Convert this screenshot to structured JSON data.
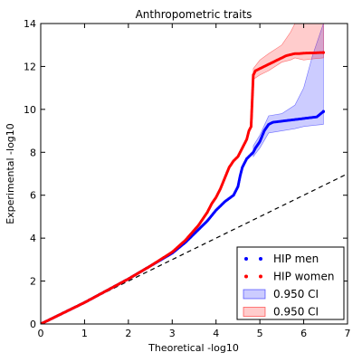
{
  "chart_data": {
    "type": "scatter",
    "title": "Anthropometric traits",
    "xlabel": "Theoretical -log10",
    "ylabel": "Experimental -log10",
    "xlim": [
      0,
      7
    ],
    "ylim": [
      0,
      14
    ],
    "xticks": [
      "0",
      "1",
      "2",
      "3",
      "4",
      "5",
      "6",
      "7"
    ],
    "yticks": [
      "0",
      "2",
      "4",
      "6",
      "8",
      "10",
      "12",
      "14"
    ],
    "grid": false,
    "legend_position": "bottom-right",
    "reference_line": {
      "style": "dashed",
      "color": "#000000",
      "x": [
        0,
        7
      ],
      "y": [
        0,
        7
      ]
    },
    "series": [
      {
        "name": "HIP men",
        "color": "#0000ff",
        "x": [
          0,
          0.5,
          1.0,
          1.5,
          2.0,
          2.5,
          3.0,
          3.3,
          3.6,
          3.8,
          4.0,
          4.2,
          4.4,
          4.5,
          4.55,
          4.6,
          4.7,
          4.8,
          4.85,
          4.9,
          5.0,
          5.1,
          5.2,
          5.3,
          5.5,
          5.7,
          5.9,
          6.1,
          6.3,
          6.45
        ],
        "y": [
          0,
          0.5,
          1.0,
          1.55,
          2.1,
          2.7,
          3.3,
          3.8,
          4.4,
          4.8,
          5.3,
          5.7,
          6.0,
          6.4,
          6.9,
          7.3,
          7.7,
          7.9,
          8.0,
          8.2,
          8.5,
          9.0,
          9.3,
          9.4,
          9.45,
          9.5,
          9.55,
          9.6,
          9.65,
          9.9
        ]
      },
      {
        "name": "HIP women",
        "color": "#ff0000",
        "x": [
          0,
          0.5,
          1.0,
          1.5,
          2.0,
          2.5,
          3.0,
          3.3,
          3.6,
          3.8,
          3.9,
          4.0,
          4.1,
          4.2,
          4.3,
          4.4,
          4.5,
          4.6,
          4.7,
          4.75,
          4.8,
          4.85,
          4.9,
          5.0,
          5.1,
          5.2,
          5.3,
          5.4,
          5.5,
          5.6,
          5.7,
          5.8,
          5.9,
          6.0,
          6.2,
          6.45
        ],
        "y": [
          0,
          0.5,
          1.0,
          1.55,
          2.1,
          2.7,
          3.35,
          3.9,
          4.6,
          5.2,
          5.6,
          5.9,
          6.3,
          6.8,
          7.3,
          7.6,
          7.8,
          8.2,
          8.6,
          9.0,
          9.2,
          11.6,
          11.8,
          11.9,
          12.0,
          12.1,
          12.2,
          12.3,
          12.4,
          12.5,
          12.55,
          12.6,
          12.6,
          12.62,
          12.63,
          12.65
        ]
      }
    ],
    "ci_bands": [
      {
        "name": "0.950 CI",
        "color": "#0000ff",
        "opacity": 0.2,
        "x": [
          4.85,
          5.0,
          5.2,
          5.5,
          5.8,
          6.0,
          6.2,
          6.45
        ],
        "lower": [
          7.8,
          8.2,
          8.9,
          9.0,
          9.1,
          9.2,
          9.25,
          9.3
        ],
        "upper": [
          8.3,
          8.8,
          9.7,
          9.8,
          10.2,
          11.0,
          12.5,
          14.0
        ]
      },
      {
        "name": "0.950 CI",
        "color": "#ff0000",
        "opacity": 0.2,
        "x": [
          4.85,
          5.0,
          5.2,
          5.5,
          5.7,
          5.8,
          6.0,
          6.2,
          6.45
        ],
        "lower": [
          11.4,
          11.6,
          11.8,
          12.2,
          12.3,
          12.4,
          12.3,
          12.35,
          12.4
        ],
        "upper": [
          11.9,
          12.3,
          12.6,
          13.0,
          13.6,
          14.0,
          14.0,
          14.0,
          14.0
        ]
      }
    ],
    "legend": [
      "HIP men",
      "HIP women",
      "0.950 CI",
      "0.950 CI"
    ]
  }
}
